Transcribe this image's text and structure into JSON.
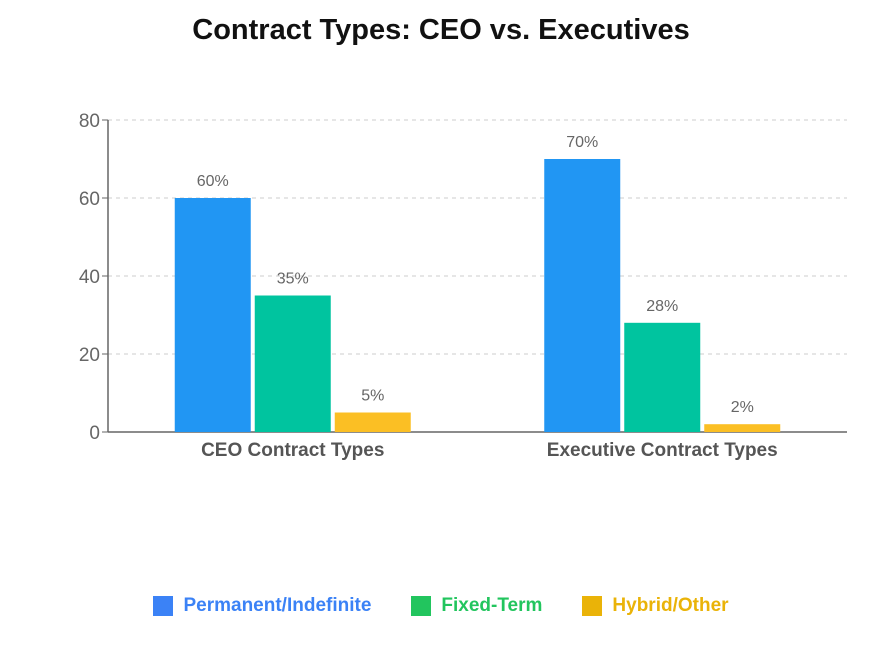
{
  "chart_data": {
    "type": "bar",
    "title": "Contract Types: CEO vs. Executives",
    "categories": [
      "CEO Contract Types",
      "Executive Contract Types"
    ],
    "series": [
      {
        "name": "Permanent/Indefinite",
        "values": [
          60,
          70
        ],
        "labels": [
          "60%",
          "70%"
        ],
        "color": "#2196F3",
        "legend_color": "#3B82F6"
      },
      {
        "name": "Fixed-Term",
        "values": [
          35,
          28
        ],
        "labels": [
          "35%",
          "28%"
        ],
        "color": "#00C49F",
        "legend_color": "#22C55E"
      },
      {
        "name": "Hybrid/Other",
        "values": [
          5,
          2
        ],
        "labels": [
          "5%",
          "2%"
        ],
        "color": "#FBBF24",
        "legend_color": "#EAB308"
      }
    ],
    "y_ticks": [
      "0",
      "20",
      "40",
      "60",
      "80"
    ],
    "ylim": [
      0,
      80
    ],
    "grid": true,
    "legend_position": "bottom-center",
    "xlabel": "",
    "ylabel": ""
  }
}
